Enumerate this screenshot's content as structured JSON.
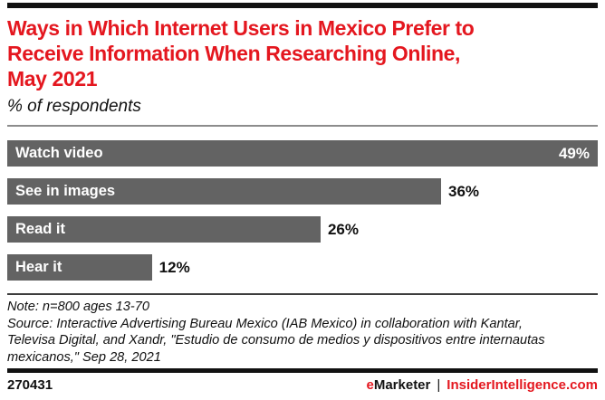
{
  "header": {
    "title_lines": [
      "Ways in Which Internet Users in Mexico Prefer to",
      "Receive Information When Researching Online,",
      "May 2021"
    ],
    "subtitle": "% of respondents"
  },
  "chart_data": {
    "type": "bar",
    "orientation": "horizontal",
    "title": "Ways in Which Internet Users in Mexico Prefer to Receive Information When Researching Online, May 2021",
    "subtitle": "% of respondents",
    "categories": [
      "Watch video",
      "See in images",
      "Read it",
      "Hear it"
    ],
    "values": [
      49,
      36,
      26,
      12
    ],
    "labels": [
      "49%",
      "36%",
      "26%",
      "12%"
    ],
    "value_suffix": "%",
    "xlim": [
      0,
      49
    ],
    "grid": false,
    "legend": false,
    "value_label_positions": [
      "inside-end",
      "outside-end",
      "outside-end",
      "outside-end"
    ],
    "bar_color": "#636363"
  },
  "notes": {
    "note": "Note: n=800 ages 13-70",
    "source": "Source: Interactive Advertising Bureau Mexico (IAB Mexico) in collaboration with Kantar, Televisa Digital, and Xandr, \"Estudio de consumo de medios y dispositivos entre internautas mexicanos,\" Sep 28, 2021"
  },
  "footer": {
    "chart_id": "270431",
    "brand_e": "e",
    "brand_rest": "Marketer",
    "separator": "|",
    "site": "InsiderIntelligence.com"
  },
  "colors": {
    "accent_red": "#e4171f",
    "bar_gray": "#636363",
    "rule_gray": "#8c8c8c",
    "ink": "#101010"
  }
}
